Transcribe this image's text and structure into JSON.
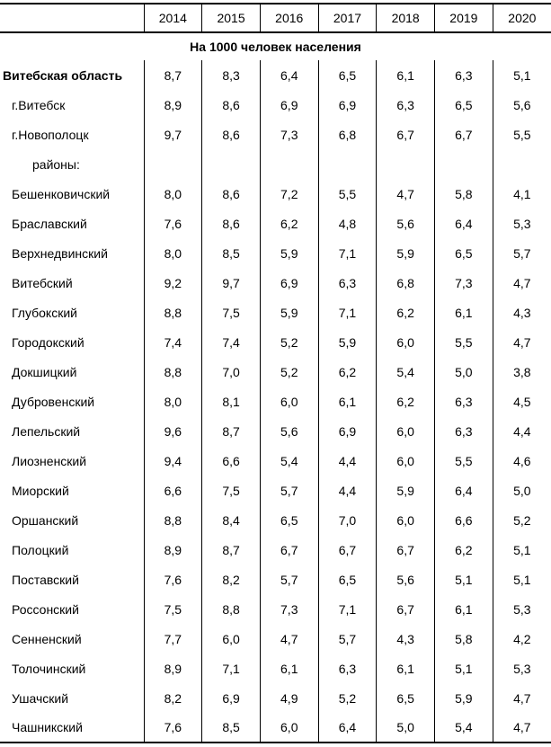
{
  "table": {
    "section_title": "На 1000 человек населения",
    "years": [
      "2014",
      "2015",
      "2016",
      "2017",
      "2018",
      "2019",
      "2020"
    ],
    "rows": [
      {
        "label": "Витебская область",
        "bold": true,
        "indent": 0,
        "values": [
          "8,7",
          "8,3",
          "6,4",
          "6,5",
          "6,1",
          "6,3",
          "5,1"
        ]
      },
      {
        "label": "г.Витебск",
        "bold": false,
        "indent": 1,
        "values": [
          "8,9",
          "8,6",
          "6,9",
          "6,9",
          "6,3",
          "6,5",
          "5,6"
        ]
      },
      {
        "label": "г.Новополоцк",
        "bold": false,
        "indent": 1,
        "values": [
          "9,7",
          "8,6",
          "7,3",
          "6,8",
          "6,7",
          "6,7",
          "5,5"
        ]
      },
      {
        "label": "районы:",
        "bold": false,
        "indent": 2,
        "values": [
          "",
          "",
          "",
          "",
          "",
          "",
          ""
        ]
      },
      {
        "label": "Бешенковичский",
        "bold": false,
        "indent": 1,
        "values": [
          "8,0",
          "8,6",
          "7,2",
          "5,5",
          "4,7",
          "5,8",
          "4,1"
        ]
      },
      {
        "label": "Браславский",
        "bold": false,
        "indent": 1,
        "values": [
          "7,6",
          "8,6",
          "6,2",
          "4,8",
          "5,6",
          "6,4",
          "5,3"
        ]
      },
      {
        "label": "Верхнедвинский",
        "bold": false,
        "indent": 1,
        "values": [
          "8,0",
          "8,5",
          "5,9",
          "7,1",
          "5,9",
          "6,5",
          "5,7"
        ]
      },
      {
        "label": "Витебский",
        "bold": false,
        "indent": 1,
        "values": [
          "9,2",
          "9,7",
          "6,9",
          "6,3",
          "6,8",
          "7,3",
          "4,7"
        ]
      },
      {
        "label": "Глубокский",
        "bold": false,
        "indent": 1,
        "values": [
          "8,8",
          "7,5",
          "5,9",
          "7,1",
          "6,2",
          "6,1",
          "4,3"
        ]
      },
      {
        "label": "Городокский",
        "bold": false,
        "indent": 1,
        "values": [
          "7,4",
          "7,4",
          "5,2",
          "5,9",
          "6,0",
          "5,5",
          "4,7"
        ]
      },
      {
        "label": "Докшицкий",
        "bold": false,
        "indent": 1,
        "values": [
          "8,8",
          "7,0",
          "5,2",
          "6,2",
          "5,4",
          "5,0",
          "3,8"
        ]
      },
      {
        "label": "Дубровенский",
        "bold": false,
        "indent": 1,
        "values": [
          "8,0",
          "8,1",
          "6,0",
          "6,1",
          "6,2",
          "6,3",
          "4,5"
        ]
      },
      {
        "label": "Лепельский",
        "bold": false,
        "indent": 1,
        "values": [
          "9,6",
          "8,7",
          "5,6",
          "6,9",
          "6,0",
          "6,3",
          "4,4"
        ]
      },
      {
        "label": "Лиозненский",
        "bold": false,
        "indent": 1,
        "values": [
          "9,4",
          "6,6",
          "5,4",
          "4,4",
          "6,0",
          "5,5",
          "4,6"
        ]
      },
      {
        "label": "Миорский",
        "bold": false,
        "indent": 1,
        "values": [
          "6,6",
          "7,5",
          "5,7",
          "4,4",
          "5,9",
          "6,4",
          "5,0"
        ]
      },
      {
        "label": "Оршанский",
        "bold": false,
        "indent": 1,
        "values": [
          "8,8",
          "8,4",
          "6,5",
          "7,0",
          "6,0",
          "6,6",
          "5,2"
        ]
      },
      {
        "label": "Полоцкий",
        "bold": false,
        "indent": 1,
        "values": [
          "8,9",
          "8,7",
          "6,7",
          "6,7",
          "6,7",
          "6,2",
          "5,1"
        ]
      },
      {
        "label": "Поставский",
        "bold": false,
        "indent": 1,
        "values": [
          "7,6",
          "8,2",
          "5,7",
          "6,5",
          "5,6",
          "5,1",
          "5,1"
        ]
      },
      {
        "label": "Россонский",
        "bold": false,
        "indent": 1,
        "values": [
          "7,5",
          "8,8",
          "7,3",
          "7,1",
          "6,7",
          "6,1",
          "5,3"
        ]
      },
      {
        "label": "Сенненский",
        "bold": false,
        "indent": 1,
        "values": [
          "7,7",
          "6,0",
          "4,7",
          "5,7",
          "4,3",
          "5,8",
          "4,2"
        ]
      },
      {
        "label": "Толочинский",
        "bold": false,
        "indent": 1,
        "values": [
          "8,9",
          "7,1",
          "6,1",
          "6,3",
          "6,1",
          "5,1",
          "5,3"
        ]
      },
      {
        "label": "Ушачский",
        "bold": false,
        "indent": 1,
        "values": [
          "8,2",
          "6,9",
          "4,9",
          "5,2",
          "6,5",
          "5,9",
          "4,7"
        ]
      },
      {
        "label": "Чашникский",
        "bold": false,
        "indent": 1,
        "values": [
          "7,6",
          "8,5",
          "6,0",
          "6,4",
          "5,0",
          "5,4",
          "4,7"
        ]
      }
    ]
  }
}
